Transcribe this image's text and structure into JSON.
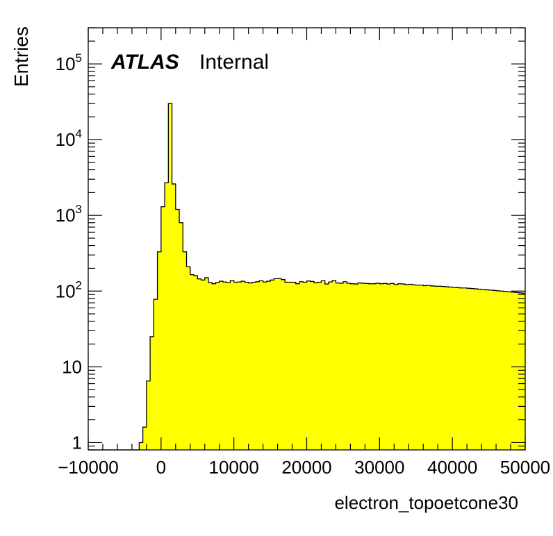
{
  "chart_data": {
    "type": "area",
    "style": "histogram",
    "fill_color": "#ffff00",
    "line_color": "#000000",
    "xlabel": "electron_topoetcone30",
    "ylabel": "Entries",
    "label_bold": "ATLAS",
    "label_status": "Internal",
    "log_y": true,
    "xlim": [
      -10000,
      50000
    ],
    "ylim": [
      0.8,
      300000
    ],
    "x_ticks": [
      "−10000",
      "0",
      "10000",
      "20000",
      "30000",
      "40000",
      "50000"
    ],
    "y_ticks": [
      {
        "base": "1",
        "exp": ""
      },
      {
        "base": "10",
        "exp": ""
      },
      {
        "base": "10",
        "exp": "2"
      },
      {
        "base": "10",
        "exp": "3"
      },
      {
        "base": "10",
        "exp": "4"
      },
      {
        "base": "10",
        "exp": "5"
      }
    ],
    "bin_width": 500,
    "bin_start": -10000,
    "values": [
      0,
      0,
      0,
      0,
      0,
      0,
      0,
      0,
      0,
      0,
      0,
      0,
      0,
      0,
      1,
      1.6,
      6.5,
      25,
      78,
      330,
      1300,
      2700,
      30000,
      2600,
      1200,
      800,
      330,
      210,
      165,
      160,
      145,
      140,
      150,
      130,
      125,
      130,
      135,
      132,
      130,
      138,
      131,
      132,
      135,
      131,
      128,
      131,
      133,
      137,
      132,
      135,
      140,
      146,
      146,
      142,
      131,
      131,
      131,
      125,
      133,
      131,
      136,
      134,
      129,
      131,
      137,
      124,
      132,
      138,
      128,
      127,
      133,
      127,
      125,
      124,
      128,
      127,
      126,
      125,
      125,
      127,
      125,
      126,
      124,
      126,
      122,
      125,
      124,
      122,
      123,
      121,
      120,
      120,
      118,
      119,
      117,
      116,
      116,
      115,
      114,
      113,
      112,
      111,
      110,
      110,
      109,
      108,
      107,
      106,
      105,
      104,
      103,
      102,
      101,
      100,
      99,
      98,
      97,
      96,
      95,
      94
    ]
  }
}
